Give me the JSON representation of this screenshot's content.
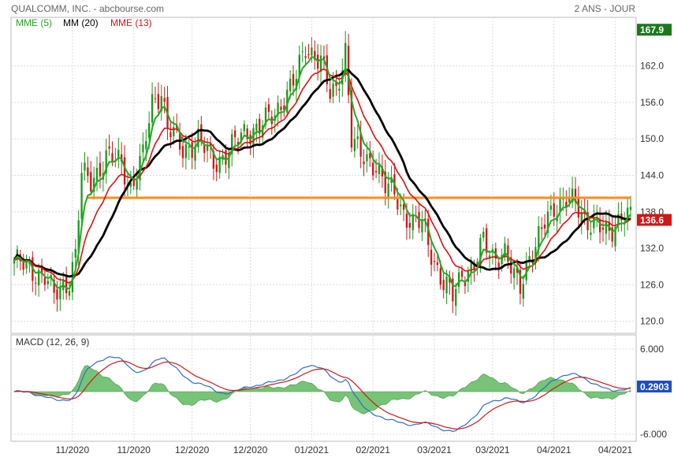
{
  "header": {
    "title": "QUALCOMM, INC. - abcbourse.com",
    "period": "2 ANS - JOUR"
  },
  "colors": {
    "up": "#1a9a1a",
    "down": "#d01818",
    "ema5": "#22aa22",
    "ma20": "#000000",
    "ema13": "#e01010",
    "resistance": "#ff8c1a",
    "macd": "#2a6fc9",
    "signal": "#d01818",
    "hist": "#5fb95f",
    "grid": "#dcdcdc"
  },
  "chart_data": [
    {
      "type": "candlestick",
      "legend": [
        {
          "label": "MME (5)",
          "color": "#22aa22"
        },
        {
          "label": "MM (20)",
          "color": "#000000"
        },
        {
          "label": "MME (13)",
          "color": "#e01010"
        }
      ],
      "ylim": [
        118,
        170
      ],
      "yticks": [
        "120.0",
        "126.0",
        "132.0",
        "138.0",
        "144.0",
        "150.0",
        "156.0",
        "162.0"
      ],
      "last_price": "136.6",
      "marker": "167.9",
      "xticks": [
        "11/2020",
        "11/2020",
        "12/2020",
        "12/2020",
        "01/2021",
        "02/2021",
        "03/2021",
        "03/2021",
        "04/2021",
        "04/2021"
      ],
      "resistance": 140.3,
      "anchors": [
        [
          0,
          130
        ],
        [
          5,
          128.5
        ],
        [
          10,
          127.5
        ],
        [
          13,
          124
        ],
        [
          18,
          127
        ],
        [
          20,
          131
        ],
        [
          22,
          144
        ],
        [
          25,
          143
        ],
        [
          30,
          147
        ],
        [
          35,
          146
        ],
        [
          38,
          142
        ],
        [
          42,
          147
        ],
        [
          45,
          156
        ],
        [
          48,
          158
        ],
        [
          50,
          152
        ],
        [
          55,
          148
        ],
        [
          60,
          150
        ],
        [
          65,
          146
        ],
        [
          70,
          148
        ],
        [
          75,
          151
        ],
        [
          80,
          152
        ],
        [
          85,
          154
        ],
        [
          88,
          157
        ],
        [
          92,
          160
        ],
        [
          95,
          165
        ],
        [
          98,
          164
        ],
        [
          100,
          163
        ],
        [
          103,
          157
        ],
        [
          105,
          158
        ],
        [
          108,
          165
        ],
        [
          110,
          150
        ],
        [
          113,
          147
        ],
        [
          118,
          146
        ],
        [
          121,
          142
        ],
        [
          124,
          141
        ],
        [
          127,
          138
        ],
        [
          130,
          136
        ],
        [
          133,
          136
        ],
        [
          137,
          130
        ],
        [
          140,
          126
        ],
        [
          143,
          124
        ],
        [
          146,
          128
        ],
        [
          150,
          129
        ],
        [
          153,
          133
        ],
        [
          156,
          131
        ],
        [
          160,
          131
        ],
        [
          163,
          127
        ],
        [
          165,
          126
        ],
        [
          168,
          131
        ],
        [
          170,
          132
        ],
        [
          173,
          136
        ],
        [
          176,
          139
        ],
        [
          180,
          140
        ],
        [
          183,
          139
        ],
        [
          186,
          137
        ],
        [
          190,
          136
        ],
        [
          193,
          134
        ],
        [
          195,
          135
        ],
        [
          198,
          138
        ],
        [
          201,
          137
        ]
      ],
      "x_domain": [
        0,
        201
      ],
      "series": [
        {
          "name": "MME (5)",
          "period": 5,
          "method": "ema"
        },
        {
          "name": "MM (20)",
          "period": 20,
          "method": "sma"
        },
        {
          "name": "MME (13)",
          "period": 13,
          "method": "ema"
        }
      ]
    },
    {
      "type": "line",
      "label": "MACD (12, 26, 9)",
      "ylim": [
        -7,
        8
      ],
      "yticks": [
        "6.000",
        "-6.000"
      ],
      "last_value": "0.2903",
      "series": [
        {
          "name": "MACD",
          "color": "#2a6fc9"
        },
        {
          "name": "Signal",
          "color": "#d01818"
        },
        {
          "name": "Histogram",
          "color": "#5fb95f"
        }
      ]
    }
  ]
}
